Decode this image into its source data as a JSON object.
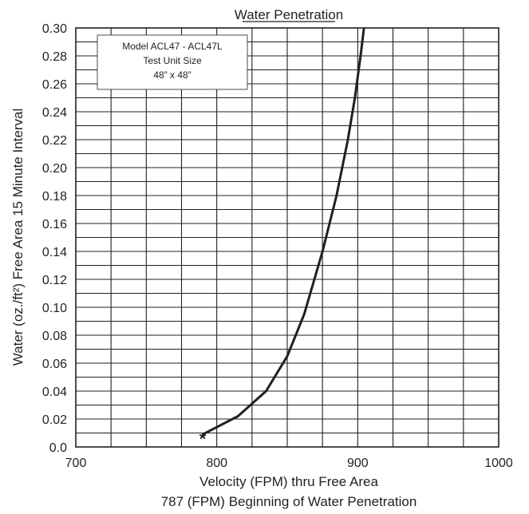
{
  "chart_data": {
    "type": "line",
    "title": "Water Penetration",
    "xlabel": "Velocity (FPM) thru Free Area",
    "xlabel2": "787 (FPM) Beginning of Water Penetration",
    "ylabel": "Water (oz./ft²) Free Area 15 Minute Interval",
    "xlim": [
      700,
      1000
    ],
    "ylim": [
      0,
      0.3
    ],
    "x_ticks": [
      "700",
      "800",
      "900",
      "1000"
    ],
    "y_ticks": [
      "0.0",
      "0.02",
      "0.04",
      "0.06",
      "0.08",
      "0.10",
      "0.12",
      "0.14",
      "0.16",
      "0.18",
      "0.20",
      "0.22",
      "0.24",
      "0.26",
      "0.28",
      "0.30"
    ],
    "grid": true,
    "legend": [
      "Model ACL47 - ACL47L",
      "Test Unit Size",
      "48” x 48”"
    ],
    "legend_position": "top-left",
    "series": [
      {
        "x": [
          790,
          815,
          835,
          850,
          862,
          875,
          885,
          893,
          898,
          902,
          905
        ],
        "y": [
          0.009,
          0.022,
          0.04,
          0.065,
          0.095,
          0.14,
          0.18,
          0.22,
          0.25,
          0.28,
          0.305
        ]
      }
    ],
    "marker": {
      "x": 790,
      "y": 0.009,
      "symbol": "*"
    },
    "colors": {
      "line": "#231f20",
      "grid": "#231f20",
      "text": "#231f20"
    }
  }
}
